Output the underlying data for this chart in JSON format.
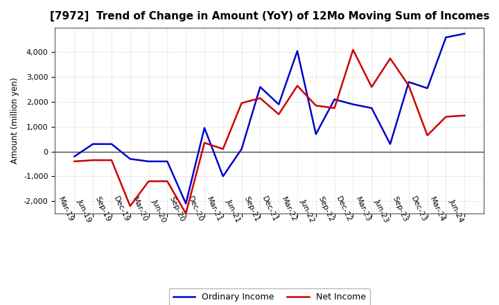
{
  "title": "[7972]  Trend of Change in Amount (YoY) of 12Mo Moving Sum of Incomes",
  "ylabel": "Amount (million yen)",
  "x_labels": [
    "Mar-19",
    "Jun-19",
    "Sep-19",
    "Dec-19",
    "Mar-20",
    "Jun-20",
    "Sep-20",
    "Dec-20",
    "Mar-21",
    "Jun-21",
    "Sep-21",
    "Dec-21",
    "Mar-22",
    "Jun-22",
    "Sep-22",
    "Dec-22",
    "Mar-23",
    "Jun-23",
    "Sep-23",
    "Dec-23",
    "Mar-24",
    "Jun-24"
  ],
  "ordinary_income": [
    -200,
    300,
    300,
    -300,
    -400,
    -400,
    -2100,
    950,
    -1000,
    100,
    2600,
    1900,
    4050,
    700,
    2100,
    1900,
    1750,
    300,
    2800,
    2550,
    4600,
    4750
  ],
  "net_income": [
    -400,
    -350,
    -350,
    -2200,
    -1200,
    -1200,
    -2500,
    350,
    100,
    1950,
    2150,
    1500,
    2650,
    1850,
    1750,
    4100,
    2600,
    3750,
    2650,
    650,
    1400,
    1450
  ],
  "ordinary_color": "#0000cc",
  "net_color": "#cc0000",
  "ylim": [
    -2500,
    5000
  ],
  "yticks": [
    -2000,
    -1000,
    0,
    1000,
    2000,
    3000,
    4000
  ],
  "background_color": "#ffffff",
  "grid_color": "#aaaaaa",
  "line_width": 1.8,
  "title_fontsize": 11,
  "axis_fontsize": 8.5,
  "tick_fontsize": 8,
  "legend_fontsize": 9
}
